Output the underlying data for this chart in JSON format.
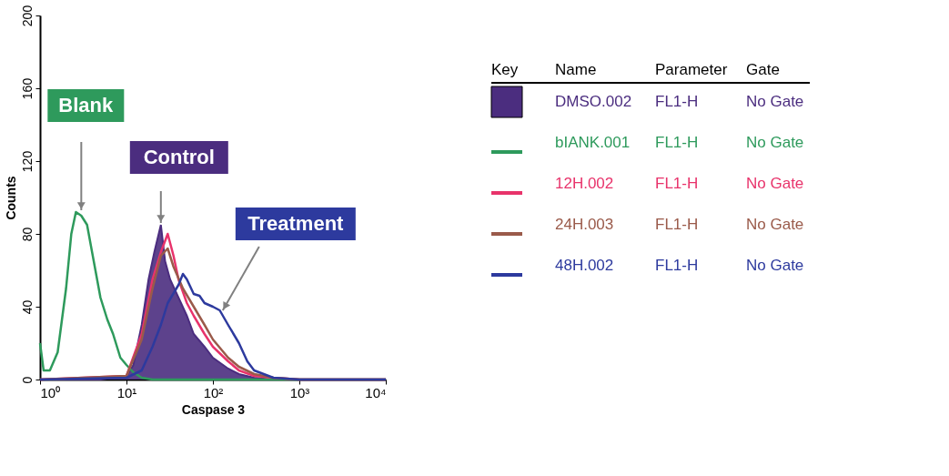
{
  "chart_data": {
    "type": "line",
    "xlabel": "Caspase 3",
    "ylabel": "Counts",
    "log": "x",
    "xlim": [
      1,
      10000
    ],
    "xticks": [
      {
        "value": 1,
        "label": "10⁰"
      },
      {
        "value": 10,
        "label": "10¹"
      },
      {
        "value": 100,
        "label": "10²"
      },
      {
        "value": 1000,
        "label": "10³"
      },
      {
        "value": 10000,
        "label": "10⁴"
      }
    ],
    "ylim": [
      0,
      200
    ],
    "yticks": [
      0,
      40,
      80,
      120,
      160,
      200
    ],
    "grid": false,
    "legend": "right",
    "series": [
      {
        "name": "DMSO.002",
        "type": "area",
        "color": "#4b2d7f",
        "x": [
          1,
          5,
          10,
          12,
          15,
          18,
          21,
          25,
          28,
          32,
          40,
          50,
          60,
          80,
          100,
          150,
          200,
          300,
          500,
          10000
        ],
        "values": [
          0,
          0,
          2,
          8,
          30,
          55,
          70,
          85,
          65,
          55,
          45,
          35,
          25,
          18,
          12,
          6,
          3,
          1,
          0,
          0
        ]
      },
      {
        "name": "bIANK.001",
        "color": "#2e9a5c",
        "x": [
          1,
          1.1,
          1.3,
          1.6,
          2,
          2.3,
          2.6,
          3,
          3.5,
          4,
          5,
          6,
          7,
          8.5,
          10,
          12,
          15,
          20,
          50,
          100,
          1000,
          10000
        ],
        "values": [
          20,
          5,
          5,
          15,
          50,
          80,
          92,
          90,
          85,
          70,
          45,
          33,
          25,
          12,
          8,
          4,
          1,
          0,
          0,
          0,
          0,
          0
        ]
      },
      {
        "name": "12H.002",
        "color": "#e8336b",
        "x": [
          1,
          10,
          15,
          20,
          25,
          30,
          35,
          40,
          50,
          60,
          80,
          100,
          150,
          200,
          300,
          500,
          1000,
          10000
        ],
        "values": [
          0,
          2,
          25,
          55,
          70,
          80,
          68,
          55,
          42,
          35,
          25,
          18,
          10,
          5,
          2,
          1,
          0,
          0
        ]
      },
      {
        "name": "24H.003",
        "color": "#9a5a4a",
        "x": [
          1,
          10,
          15,
          20,
          25,
          30,
          35,
          45,
          60,
          80,
          100,
          150,
          200,
          300,
          500,
          1000,
          10000
        ],
        "values": [
          0,
          2,
          22,
          50,
          68,
          72,
          62,
          50,
          40,
          30,
          22,
          12,
          7,
          3,
          1,
          0,
          0
        ]
      },
      {
        "name": "48H.002",
        "color": "#2d3a9e",
        "x": [
          1,
          10,
          15,
          20,
          25,
          30,
          40,
          45,
          50,
          60,
          70,
          80,
          100,
          120,
          150,
          200,
          250,
          300,
          500,
          1000,
          10000
        ],
        "values": [
          0,
          1,
          5,
          18,
          30,
          42,
          52,
          58,
          55,
          47,
          46,
          42,
          40,
          38,
          30,
          20,
          10,
          5,
          1,
          0,
          0
        ]
      }
    ],
    "annotations": [
      {
        "text": "Blank",
        "x": 3,
        "y": 93
      },
      {
        "text": "Control",
        "x": 25,
        "y": 86
      },
      {
        "text": "Treatment",
        "x": 130,
        "y": 38
      },
      "Key",
      "Name",
      "Parameter",
      "Gate",
      "FL1-H",
      "No Gate",
      "FL1-H",
      "No Gate",
      "FL1-H",
      "No Gate",
      "FL1-H",
      "No Gate",
      "FL1-H",
      "No Gate"
    ]
  }
}
